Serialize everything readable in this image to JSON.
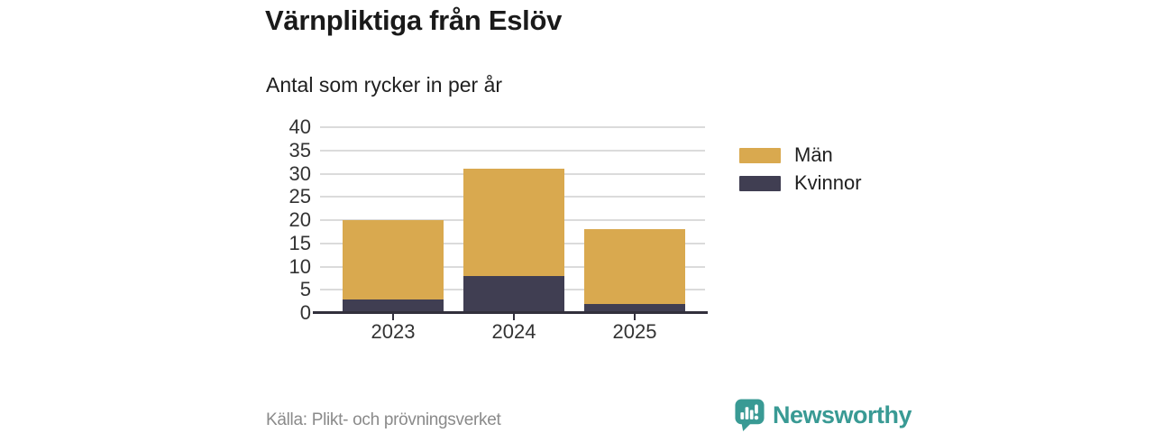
{
  "page": {
    "title": "Värnpliktiga från Eslöv",
    "subtitle": "Antal som rycker in per år",
    "source": "Källa: Plikt- och prövningsverket",
    "brand": {
      "name": "Newsworthy",
      "icon": "bar-chart-speech-bubble-icon",
      "color": "#399A94"
    }
  },
  "chart_data": {
    "type": "bar",
    "stacked": true,
    "title": "Värnpliktiga från Eslöv",
    "subtitle": "Antal som rycker in per år",
    "xlabel": "",
    "ylabel": "",
    "categories": [
      "2023",
      "2024",
      "2025"
    ],
    "series": [
      {
        "name": "Män",
        "color": "#D9A94F",
        "values": [
          17,
          23,
          16
        ]
      },
      {
        "name": "Kvinnor",
        "color": "#403E52",
        "values": [
          3,
          8,
          2
        ]
      }
    ],
    "stack_order_bottom_to_top": [
      "Kvinnor",
      "Män"
    ],
    "stack_totals": [
      20,
      31,
      18
    ],
    "yticks": [
      0,
      5,
      10,
      15,
      20,
      25,
      30,
      35,
      40
    ],
    "ylim": [
      0,
      40
    ],
    "grid": true,
    "grid_color": "#DBDBDB",
    "axis_color": "#32303C",
    "tick_label_color": "#333333",
    "legend_position": "right"
  }
}
